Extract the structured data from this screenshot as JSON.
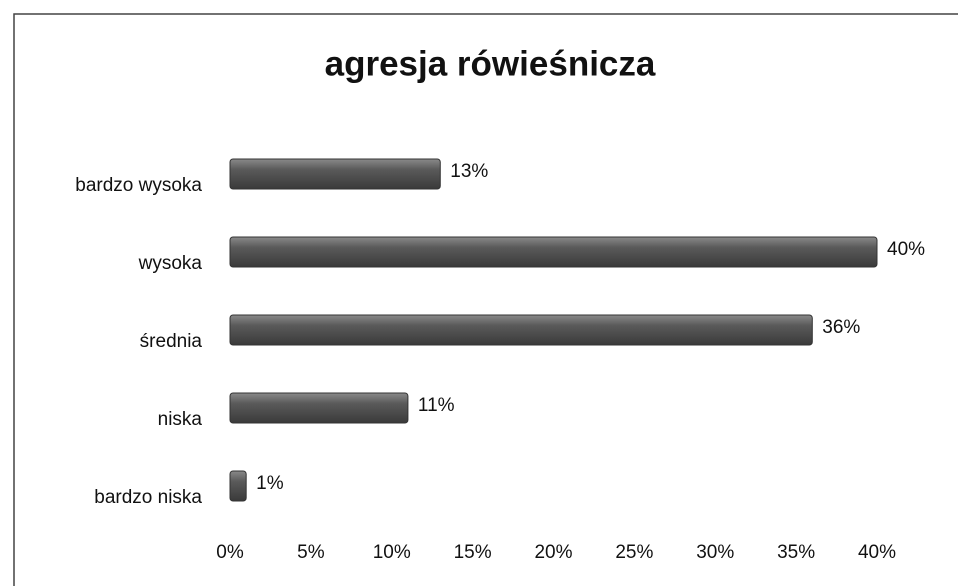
{
  "chart_data": {
    "type": "barh",
    "title": "agresja rówieśnicza",
    "categories": [
      "bardzo wysoka",
      "wysoka",
      "średnia",
      "niska",
      "bardzo niska"
    ],
    "values": [
      13,
      40,
      36,
      11,
      1
    ],
    "value_labels": [
      "13%",
      "40%",
      "36%",
      "11%",
      "1%"
    ],
    "color": "#555555",
    "xlim": [
      0,
      40
    ],
    "xticks": [
      {
        "value": 0,
        "label": "0%"
      },
      {
        "value": 5,
        "label": "5%"
      },
      {
        "value": 10,
        "label": "10%"
      },
      {
        "value": 15,
        "label": "15%"
      },
      {
        "value": 20,
        "label": "20%"
      },
      {
        "value": 25,
        "label": "25%"
      },
      {
        "value": 30,
        "label": "30%"
      },
      {
        "value": 35,
        "label": "35%"
      },
      {
        "value": 40,
        "label": "40%"
      }
    ],
    "grid": false
  }
}
